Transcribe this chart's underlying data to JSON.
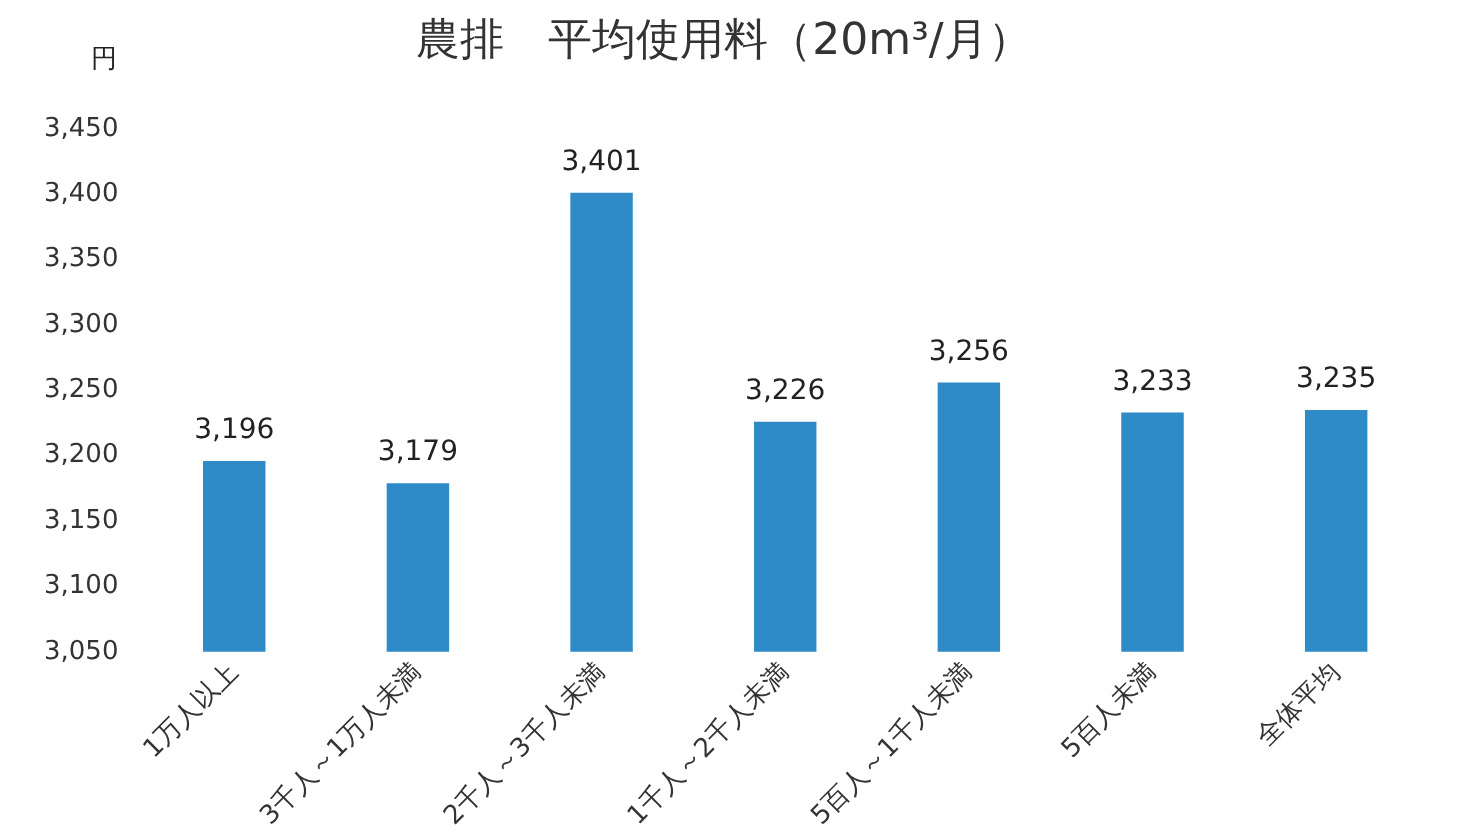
{
  "chart_data": {
    "type": "bar",
    "title": "農排　平均使用料（20m³/月）",
    "ylabel": "円",
    "categories": [
      "1万人以上",
      "3千人～1万人未満",
      "2千人～3千人未満",
      "1千人～2千人未満",
      "5百人～1千人未満",
      "5百人未満",
      "全体平均"
    ],
    "values": [
      3196,
      3179,
      3401,
      3226,
      3256,
      3233,
      3235
    ],
    "value_labels": [
      "3,196",
      "3,179",
      "3,401",
      "3,226",
      "3,256",
      "3,233",
      "3,235"
    ],
    "color": "#2e8bc8",
    "ylim": [
      3050,
      3450
    ],
    "yticks": [
      {
        "value": 3050,
        "label": "3,050"
      },
      {
        "value": 3100,
        "label": "3,100"
      },
      {
        "value": 3150,
        "label": "3,150"
      },
      {
        "value": 3200,
        "label": "3,200"
      },
      {
        "value": 3250,
        "label": "3,250"
      },
      {
        "value": 3300,
        "label": "3,300"
      },
      {
        "value": 3350,
        "label": "3,350"
      },
      {
        "value": 3400,
        "label": "3,400"
      },
      {
        "value": 3450,
        "label": "3,450"
      }
    ],
    "grid": false
  }
}
